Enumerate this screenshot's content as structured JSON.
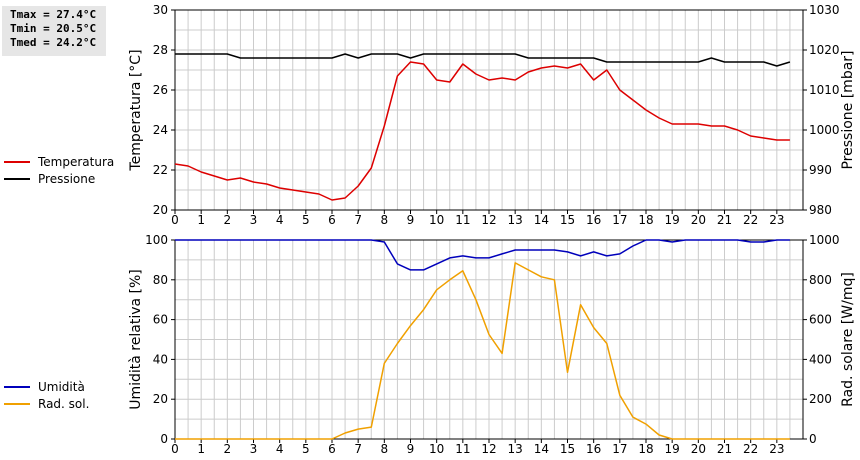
{
  "stats": {
    "tmax": "Tmax = 27.4°C",
    "tmin": "Tmin = 20.5°C",
    "tmed": "Tmed = 24.2°C"
  },
  "colors": {
    "temperature": "#dd0000",
    "pressure": "#000000",
    "humidity": "#0000bb",
    "solar": "#f0a000",
    "grid": "#cccccc"
  },
  "chart_data": [
    {
      "type": "line",
      "x_ticks": [
        0,
        1,
        2,
        3,
        4,
        5,
        6,
        7,
        8,
        9,
        10,
        11,
        12,
        13,
        14,
        15,
        16,
        17,
        18,
        19,
        20,
        21,
        22,
        23
      ],
      "xlim": [
        0,
        24
      ],
      "left_axis": {
        "label": "Temperatura [°C]",
        "ylim": [
          20,
          30
        ],
        "ticks": [
          20,
          22,
          24,
          26,
          28,
          30
        ]
      },
      "right_axis": {
        "label": "Pressione [mbar]",
        "ylim": [
          980,
          1030
        ],
        "ticks": [
          980,
          990,
          1000,
          1010,
          1020,
          1030
        ]
      },
      "grid": true,
      "legend": "left",
      "series": [
        {
          "name": "Temperatura",
          "axis": "left",
          "color": "#dd0000",
          "x": [
            0,
            0.5,
            1,
            1.5,
            2,
            2.5,
            3,
            3.5,
            4,
            4.5,
            5,
            5.5,
            6,
            6.5,
            7,
            7.5,
            8,
            8.5,
            9,
            9.5,
            10,
            10.5,
            11,
            11.5,
            12,
            12.5,
            13,
            13.5,
            14,
            14.5,
            15,
            15.5,
            16,
            16.5,
            17,
            17.5,
            18,
            18.5,
            19,
            19.5,
            20,
            20.5,
            21,
            21.5,
            22,
            22.5,
            23,
            23.5
          ],
          "values": [
            22.3,
            22.2,
            21.9,
            21.7,
            21.5,
            21.6,
            21.4,
            21.3,
            21.1,
            21.0,
            20.9,
            20.8,
            20.5,
            20.6,
            21.2,
            22.1,
            24.2,
            26.7,
            27.4,
            27.3,
            26.5,
            26.4,
            27.3,
            26.8,
            26.5,
            26.6,
            26.5,
            26.9,
            27.1,
            27.2,
            27.1,
            27.3,
            26.5,
            27.0,
            26.0,
            25.5,
            25.0,
            24.6,
            24.3,
            24.3,
            24.3,
            24.2,
            24.2,
            24.0,
            23.7,
            23.6,
            23.5,
            23.5
          ]
        },
        {
          "name": "Pressione",
          "axis": "right",
          "color": "#000000",
          "x": [
            0,
            0.5,
            1,
            1.5,
            2,
            2.5,
            3,
            3.5,
            4,
            4.5,
            5,
            5.5,
            6,
            6.5,
            7,
            7.5,
            8,
            8.5,
            9,
            9.5,
            10,
            10.5,
            11,
            11.5,
            12,
            12.5,
            13,
            13.5,
            14,
            14.5,
            15,
            15.5,
            16,
            16.5,
            17,
            17.5,
            18,
            18.5,
            19,
            19.5,
            20,
            20.5,
            21,
            21.5,
            22,
            22.5,
            23,
            23.5
          ],
          "values": [
            1019,
            1019,
            1019,
            1019,
            1019,
            1018,
            1018,
            1018,
            1018,
            1018,
            1018,
            1018,
            1018,
            1019,
            1018,
            1019,
            1019,
            1019,
            1018,
            1019,
            1019,
            1019,
            1019,
            1019,
            1019,
            1019,
            1019,
            1018,
            1018,
            1018,
            1018,
            1018,
            1018,
            1017,
            1017,
            1017,
            1017,
            1017,
            1017,
            1017,
            1017,
            1018,
            1017,
            1017,
            1017,
            1017,
            1016,
            1017
          ]
        }
      ]
    },
    {
      "type": "line",
      "x_ticks": [
        0,
        1,
        2,
        3,
        4,
        5,
        6,
        7,
        8,
        9,
        10,
        11,
        12,
        13,
        14,
        15,
        16,
        17,
        18,
        19,
        20,
        21,
        22,
        23
      ],
      "xlim": [
        0,
        24
      ],
      "left_axis": {
        "label": "Umidità relativa [%]",
        "ylim": [
          0,
          100
        ],
        "ticks": [
          0,
          20,
          40,
          60,
          80,
          100
        ]
      },
      "right_axis": {
        "label": "Rad. solare [W/mq]",
        "ylim": [
          0,
          1000
        ],
        "ticks": [
          0,
          200,
          400,
          600,
          800,
          1000
        ]
      },
      "grid": true,
      "legend": "left",
      "series": [
        {
          "name": "Umidità",
          "axis": "left",
          "color": "#0000bb",
          "x": [
            0,
            0.5,
            1,
            1.5,
            2,
            2.5,
            3,
            3.5,
            4,
            4.5,
            5,
            5.5,
            6,
            6.5,
            7,
            7.5,
            8,
            8.5,
            9,
            9.5,
            10,
            10.5,
            11,
            11.5,
            12,
            12.5,
            13,
            13.5,
            14,
            14.5,
            15,
            15.5,
            16,
            16.5,
            17,
            17.5,
            18,
            18.5,
            19,
            19.5,
            20,
            20.5,
            21,
            21.5,
            22,
            22.5,
            23,
            23.5
          ],
          "values": [
            100,
            100,
            100,
            100,
            100,
            100,
            100,
            100,
            100,
            100,
            100,
            100,
            100,
            100,
            100,
            100,
            99,
            88,
            85,
            85,
            88,
            91,
            92,
            91,
            91,
            93,
            95,
            95,
            95,
            95,
            94,
            92,
            94,
            92,
            93,
            97,
            100,
            100,
            99,
            100,
            100,
            100,
            100,
            100,
            99,
            99,
            100,
            100
          ]
        },
        {
          "name": "Rad. sol.",
          "axis": "right",
          "color": "#f0a000",
          "x": [
            0,
            0.5,
            1,
            1.5,
            2,
            2.5,
            3,
            3.5,
            4,
            4.5,
            5,
            5.5,
            6,
            6.5,
            7,
            7.5,
            8,
            8.5,
            9,
            9.5,
            10,
            10.5,
            11,
            11.5,
            12,
            12.5,
            13,
            13.5,
            14,
            14.5,
            15,
            15.5,
            16,
            16.5,
            17,
            17.5,
            18,
            18.5,
            19,
            19.5,
            20,
            20.5,
            21,
            21.5,
            22,
            22.5,
            23,
            23.5
          ],
          "values": [
            0,
            0,
            0,
            0,
            0,
            0,
            0,
            0,
            0,
            0,
            0,
            0,
            0,
            30,
            50,
            60,
            380,
            480,
            570,
            650,
            750,
            800,
            845,
            700,
            525,
            430,
            885,
            850,
            815,
            800,
            335,
            675,
            560,
            480,
            220,
            110,
            75,
            20,
            0,
            0,
            0,
            0,
            0,
            0,
            0,
            0,
            0,
            0
          ]
        }
      ]
    }
  ]
}
